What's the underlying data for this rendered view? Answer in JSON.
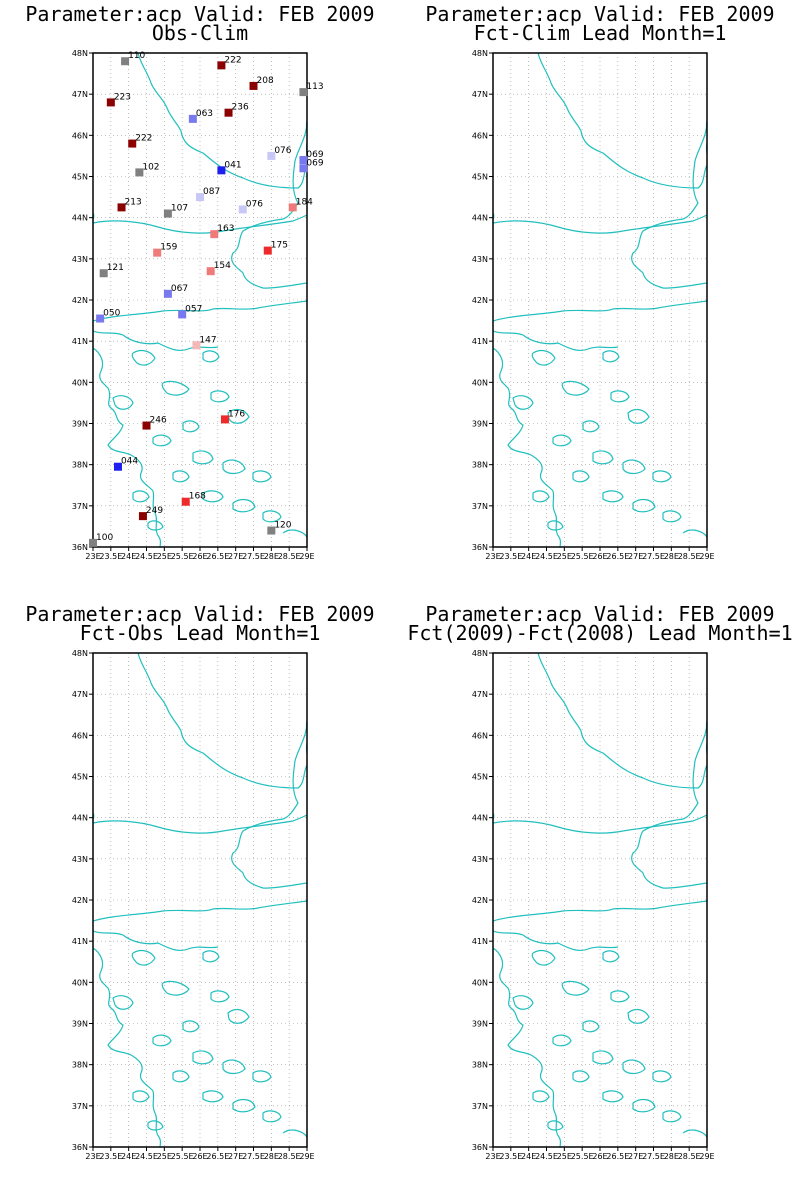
{
  "panels": [
    {
      "title1": "Parameter:acp Valid: FEB 2009",
      "title2": "Obs-Clim"
    },
    {
      "title1": "Parameter:acp Valid: FEB 2009",
      "title2": "Fct-Clim Lead Month=1"
    },
    {
      "title1": "Parameter:acp Valid: FEB 2009",
      "title2": "Fct-Obs Lead Month=1"
    },
    {
      "title1": "Parameter:acp Valid: FEB 2009",
      "title2": "Fct(2009)-Fct(2008) Lead Month=1"
    }
  ],
  "axes": {
    "lat_labels": [
      "36N",
      "37N",
      "38N",
      "39N",
      "40N",
      "41N",
      "42N",
      "43N",
      "44N",
      "45N",
      "46N",
      "47N",
      "48N"
    ],
    "lon_labels": [
      "23E",
      "23.5E",
      "24E",
      "24.5E",
      "25E",
      "25.5E",
      "26E",
      "26.5E",
      "27E",
      "27.5E",
      "28E",
      "28.5E",
      "29E"
    ],
    "lon_range": [
      23,
      29
    ],
    "lat_range": [
      36,
      48
    ]
  },
  "colors": {
    "coast": "#22bfbf",
    "grid": "#9a9a9a",
    "dark_red": "#8b0000",
    "red": "#ef2a2a",
    "salmon": "#ef7a7a",
    "pink": "#f5b8b8",
    "grey": "#808080",
    "light_blue": "#c8c8f6",
    "mid_blue": "#7878ef",
    "blue": "#1f1fef"
  },
  "stations": [
    {
      "lon": 23.9,
      "lat": 47.8,
      "label": "110",
      "color": "grey"
    },
    {
      "lon": 26.6,
      "lat": 47.7,
      "label": "222",
      "color": "dark_red"
    },
    {
      "lon": 27.5,
      "lat": 47.2,
      "label": "208",
      "color": "dark_red"
    },
    {
      "lon": 28.9,
      "lat": 47.05,
      "label": "113",
      "color": "grey"
    },
    {
      "lon": 23.5,
      "lat": 46.8,
      "label": "223",
      "color": "dark_red"
    },
    {
      "lon": 26.8,
      "lat": 46.55,
      "label": "236",
      "color": "dark_red"
    },
    {
      "lon": 25.8,
      "lat": 46.4,
      "label": "063",
      "color": "mid_blue"
    },
    {
      "lon": 24.1,
      "lat": 45.8,
      "label": "222",
      "color": "dark_red"
    },
    {
      "lon": 28.0,
      "lat": 45.5,
      "label": "076",
      "color": "light_blue"
    },
    {
      "lon": 28.9,
      "lat": 45.4,
      "label": "069",
      "color": "mid_blue"
    },
    {
      "lon": 28.9,
      "lat": 45.2,
      "label": "069",
      "color": "mid_blue"
    },
    {
      "lon": 26.6,
      "lat": 45.15,
      "label": "041",
      "color": "blue"
    },
    {
      "lon": 24.3,
      "lat": 45.1,
      "label": "102",
      "color": "grey"
    },
    {
      "lon": 26.0,
      "lat": 44.5,
      "label": "087",
      "color": "light_blue"
    },
    {
      "lon": 23.8,
      "lat": 44.25,
      "label": "213",
      "color": "dark_red"
    },
    {
      "lon": 27.2,
      "lat": 44.2,
      "label": "076",
      "color": "light_blue"
    },
    {
      "lon": 28.6,
      "lat": 44.25,
      "label": "184",
      "color": "salmon"
    },
    {
      "lon": 25.1,
      "lat": 44.1,
      "label": "107",
      "color": "grey"
    },
    {
      "lon": 26.4,
      "lat": 43.6,
      "label": "163",
      "color": "salmon"
    },
    {
      "lon": 24.8,
      "lat": 43.15,
      "label": "159",
      "color": "salmon"
    },
    {
      "lon": 27.9,
      "lat": 43.2,
      "label": "175",
      "color": "red"
    },
    {
      "lon": 23.3,
      "lat": 42.65,
      "label": "121",
      "color": "grey"
    },
    {
      "lon": 26.3,
      "lat": 42.7,
      "label": "154",
      "color": "salmon"
    },
    {
      "lon": 25.1,
      "lat": 42.15,
      "label": "067",
      "color": "mid_blue"
    },
    {
      "lon": 25.5,
      "lat": 41.65,
      "label": "057",
      "color": "mid_blue"
    },
    {
      "lon": 23.2,
      "lat": 41.55,
      "label": "050",
      "color": "mid_blue"
    },
    {
      "lon": 25.9,
      "lat": 40.9,
      "label": "147",
      "color": "pink"
    },
    {
      "lon": 26.7,
      "lat": 39.1,
      "label": "176",
      "color": "red"
    },
    {
      "lon": 24.5,
      "lat": 38.95,
      "label": "246",
      "color": "dark_red"
    },
    {
      "lon": 23.7,
      "lat": 37.95,
      "label": "044",
      "color": "blue"
    },
    {
      "lon": 25.6,
      "lat": 37.1,
      "label": "168",
      "color": "red"
    },
    {
      "lon": 24.4,
      "lat": 36.75,
      "label": "249",
      "color": "dark_red"
    },
    {
      "lon": 28.0,
      "lat": 36.4,
      "label": "120",
      "color": "grey"
    },
    {
      "lon": 23.0,
      "lat": 36.1,
      "label": "100",
      "color": "grey"
    }
  ]
}
